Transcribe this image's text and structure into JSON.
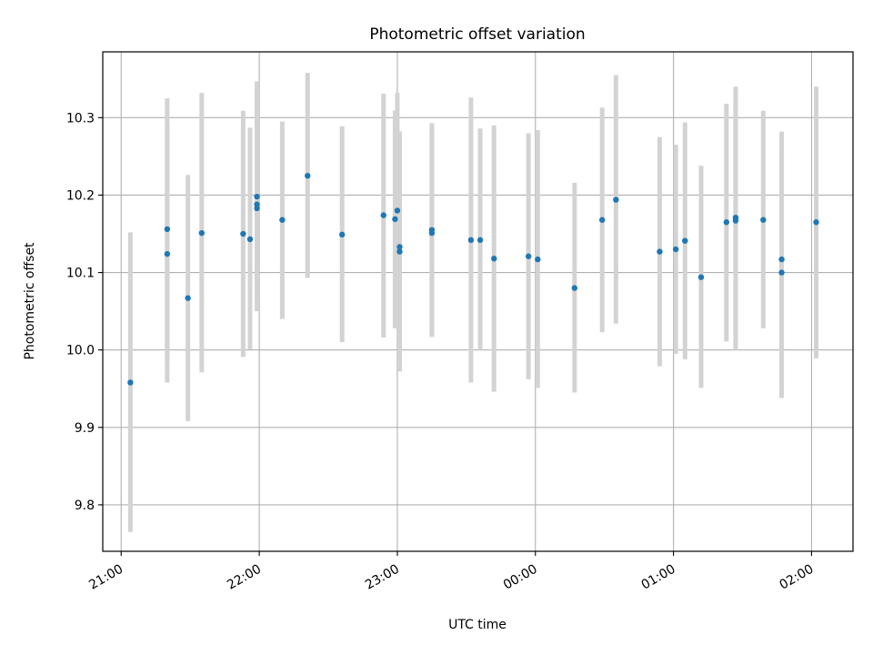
{
  "chart_data": {
    "type": "scatter",
    "title": "Photometric offset variation",
    "xlabel": "UTC time",
    "ylabel": "Photometric offset",
    "x_axis_kind": "time",
    "xlim": [
      "20:52",
      "02:18"
    ],
    "ylim": [
      9.74,
      10.385
    ],
    "x_ticks": [
      "21:00",
      "22:00",
      "23:00",
      "00:00",
      "01:00",
      "02:00"
    ],
    "y_ticks": [
      9.8,
      9.9,
      10.0,
      10.1,
      10.2,
      10.3
    ],
    "y_tick_labels": [
      "9.8",
      "9.9",
      "10.0",
      "10.1",
      "10.2",
      "10.3"
    ],
    "grid": true,
    "legend": "none",
    "colors": {
      "point": "#1f77b4",
      "errorbar": "#d3d3d3",
      "grid": "#b0b0b0"
    },
    "points": [
      {
        "t": "21:04",
        "y": 9.958,
        "lo": 9.765,
        "hi": 10.152
      },
      {
        "t": "21:20",
        "y": 10.156,
        "lo": 9.985,
        "hi": 10.325
      },
      {
        "t": "21:20",
        "y": 10.124,
        "lo": 9.958,
        "hi": 10.291
      },
      {
        "t": "21:29",
        "y": 10.067,
        "lo": 9.908,
        "hi": 10.226
      },
      {
        "t": "21:35",
        "y": 10.151,
        "lo": 9.971,
        "hi": 10.332
      },
      {
        "t": "21:53",
        "y": 10.15,
        "lo": 9.991,
        "hi": 10.309
      },
      {
        "t": "21:56",
        "y": 10.143,
        "lo": 10.001,
        "hi": 10.287
      },
      {
        "t": "21:59",
        "y": 10.198,
        "lo": 10.05,
        "hi": 10.347
      },
      {
        "t": "21:59",
        "y": 10.188,
        "lo": 10.06,
        "hi": 10.32
      },
      {
        "t": "21:59",
        "y": 10.183,
        "lo": 10.072,
        "hi": 10.294
      },
      {
        "t": "22:10",
        "y": 10.168,
        "lo": 10.04,
        "hi": 10.295
      },
      {
        "t": "22:21",
        "y": 10.225,
        "lo": 10.093,
        "hi": 10.358
      },
      {
        "t": "22:36",
        "y": 10.149,
        "lo": 10.01,
        "hi": 10.289
      },
      {
        "t": "22:54",
        "y": 10.174,
        "lo": 10.016,
        "hi": 10.331
      },
      {
        "t": "22:59",
        "y": 10.169,
        "lo": 10.028,
        "hi": 10.309
      },
      {
        "t": "23:00",
        "y": 10.18,
        "lo": 10.028,
        "hi": 10.332
      },
      {
        "t": "23:01",
        "y": 10.133,
        "lo": 9.988,
        "hi": 10.279
      },
      {
        "t": "23:01",
        "y": 10.127,
        "lo": 9.972,
        "hi": 10.282
      },
      {
        "t": "23:15",
        "y": 10.155,
        "lo": 10.017,
        "hi": 10.293
      },
      {
        "t": "23:15",
        "y": 10.151,
        "lo": 10.017,
        "hi": 10.285
      },
      {
        "t": "23:32",
        "y": 10.142,
        "lo": 9.958,
        "hi": 10.326
      },
      {
        "t": "23:36",
        "y": 10.142,
        "lo": 10.0,
        "hi": 10.286
      },
      {
        "t": "23:42",
        "y": 10.118,
        "lo": 9.946,
        "hi": 10.29
      },
      {
        "t": "23:57",
        "y": 10.121,
        "lo": 9.962,
        "hi": 10.28
      },
      {
        "t": "00:01",
        "y": 10.117,
        "lo": 9.951,
        "hi": 10.284
      },
      {
        "t": "00:17",
        "y": 10.08,
        "lo": 9.945,
        "hi": 10.216
      },
      {
        "t": "00:29",
        "y": 10.168,
        "lo": 10.023,
        "hi": 10.313
      },
      {
        "t": "00:35",
        "y": 10.194,
        "lo": 10.034,
        "hi": 10.355
      },
      {
        "t": "00:54",
        "y": 10.127,
        "lo": 9.979,
        "hi": 10.275
      },
      {
        "t": "01:01",
        "y": 10.13,
        "lo": 9.995,
        "hi": 10.265
      },
      {
        "t": "01:05",
        "y": 10.141,
        "lo": 9.988,
        "hi": 10.294
      },
      {
        "t": "01:12",
        "y": 10.094,
        "lo": 9.951,
        "hi": 10.238
      },
      {
        "t": "01:23",
        "y": 10.165,
        "lo": 10.011,
        "hi": 10.318
      },
      {
        "t": "01:27",
        "y": 10.171,
        "lo": 10.002,
        "hi": 10.34
      },
      {
        "t": "01:27",
        "y": 10.167,
        "lo": 10.0,
        "hi": 10.334
      },
      {
        "t": "01:39",
        "y": 10.168,
        "lo": 10.028,
        "hi": 10.309
      },
      {
        "t": "01:47",
        "y": 10.117,
        "lo": 9.952,
        "hi": 10.282
      },
      {
        "t": "01:47",
        "y": 10.1,
        "lo": 9.938,
        "hi": 10.261
      },
      {
        "t": "02:02",
        "y": 10.165,
        "lo": 9.989,
        "hi": 10.34
      }
    ]
  }
}
